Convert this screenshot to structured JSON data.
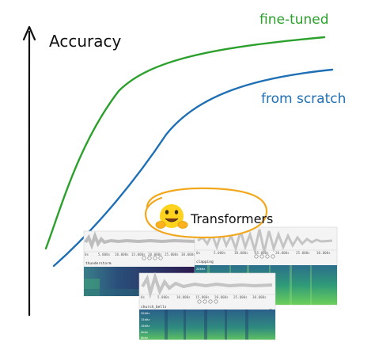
{
  "diagram": {
    "y_axis_label": "Accuracy",
    "curves": [
      {
        "id": "fine_tuned",
        "label": "fine-tuned",
        "color": "#2ca02c"
      },
      {
        "id": "from_scratch",
        "label": "from scratch",
        "color": "#1f6fb5"
      }
    ]
  },
  "badge": {
    "text": "Transformers",
    "ring_color": "#f2a81d",
    "logo_icon": "hugging-face-emoji-icon"
  },
  "audio_panels": {
    "panel_1": {
      "label": "thunderstorm",
      "ticks": [
        "0s",
        "5.000s",
        "10.000s",
        "15.000s",
        "20.000s",
        "25.000s",
        "30.000s"
      ]
    },
    "panel_2": {
      "label": "clapping",
      "ticks": [
        "0s",
        "5.000s",
        "10.000s",
        "15.000s",
        "20.000s",
        "25.000s",
        "30.000s"
      ],
      "freq_ticks": [
        "20kHz",
        "15kHz",
        "10kHz",
        "5kHz",
        "0kHz"
      ]
    },
    "panel_3": {
      "label": "church_bells",
      "ticks": [
        "0s",
        "5.000s",
        "10.000s",
        "15.000s",
        "20.000s",
        "25.000s",
        "30.000s"
      ],
      "freq_ticks": [
        "20kHz",
        "15kHz",
        "10kHz",
        "5kHz",
        "0kHz"
      ]
    },
    "colors": {
      "waveform": "#c8c8c8",
      "spectrogram_dark": "#3b1f5c",
      "spectrogram_mid": "#2a8a8a",
      "spectrogram_bright": "#7fd35a"
    }
  }
}
